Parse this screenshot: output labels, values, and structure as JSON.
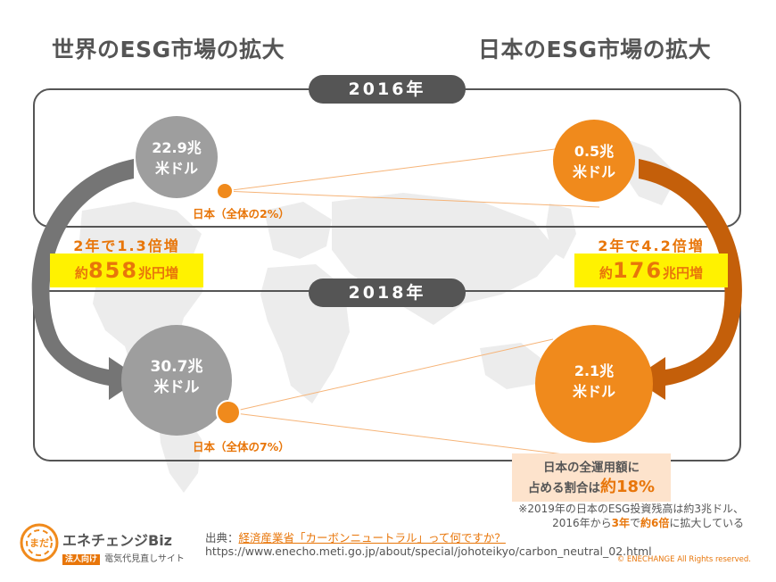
{
  "titles": {
    "world": "世界のESG市場の拡大",
    "japan": "日本のESG市場の拡大"
  },
  "years": {
    "top": "2016年",
    "bottom": "2018年"
  },
  "world_2016": {
    "value_line1": "22.9兆",
    "value_line2": "米ドル",
    "japan_share": "日本（全体の2%）"
  },
  "world_2018": {
    "value_line1": "30.7兆",
    "value_line2": "米ドル",
    "japan_share": "日本（全体の7%）"
  },
  "japan_2016": {
    "value_line1": "0.5兆",
    "value_line2": "米ドル"
  },
  "japan_2018": {
    "value_line1": "2.1兆",
    "value_line2": "米ドル"
  },
  "world_growth": {
    "text": "2年で1.3倍増",
    "prefix": "約",
    "number": "858",
    "unit": "兆円増"
  },
  "japan_growth": {
    "text": "2年で4.2倍増",
    "prefix": "約",
    "number": "176",
    "unit": "兆円増"
  },
  "share_box": {
    "line1": "日本の全運用額に",
    "line2_prefix": "占める割合は",
    "line2_value": "約18%"
  },
  "note": {
    "line1": "※2019年の日本のESG投資残高は約3兆ドル、",
    "line2_prefix": "2016年から",
    "line2_hl1": "3年",
    "line2_mid": "で",
    "line2_hl2": "約6倍",
    "line2_suffix": "に拡大している"
  },
  "source": {
    "label": "出典：",
    "link_text": "経済産業省「カーボンニュートラル」って何ですか？",
    "url": "https://www.enecho.meti.go.jp/about/special/johoteikyo/carbon_neutral_02.html"
  },
  "brand": {
    "name": "エネチェンジBiz",
    "tag": "法人向け",
    "subtitle": "電気代見直しサイト",
    "logo_text": "まだ"
  },
  "copyright": "© ENECHANGE All Rights reserved.",
  "colors": {
    "gray_circle": "#9e9e9e",
    "orange": "#f08a1c",
    "dark_orange_arrow": "#c45f0a",
    "highlight": "#fff200",
    "pill": "#555555"
  }
}
